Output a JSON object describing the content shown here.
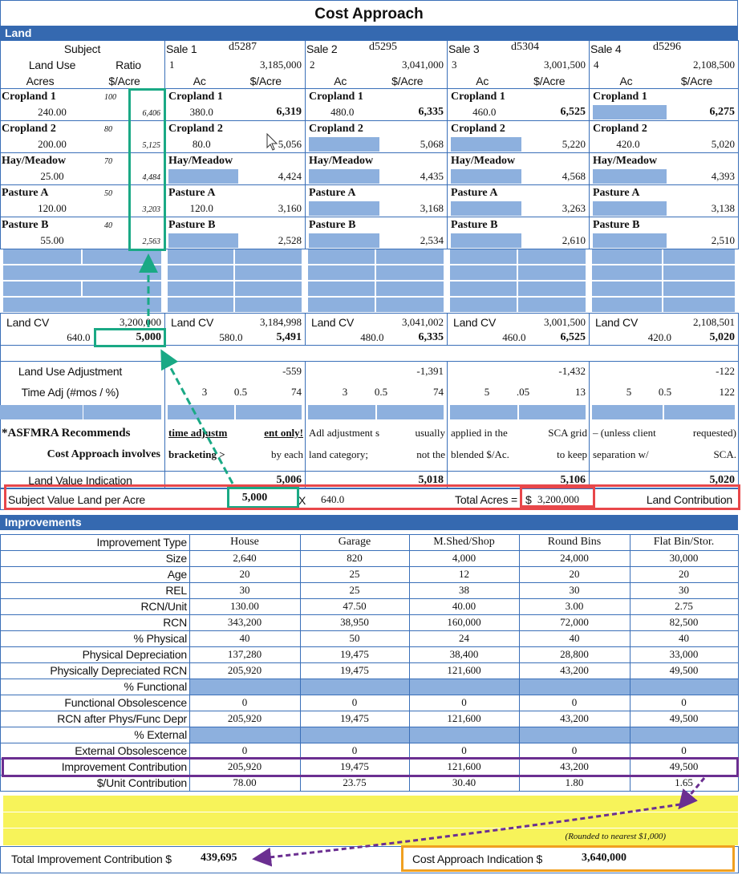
{
  "title": "Cost Approach",
  "land": {
    "section_label": "Land",
    "subject": {
      "label": "Subject",
      "land_use_label": "Land Use",
      "ratio_label": "Ratio",
      "acres_label": "Acres",
      "per_acre_label": "$/Acre",
      "rows": [
        {
          "name": "Cropland 1",
          "ratio": "100",
          "acres": "240.00",
          "per_acre": "6,406"
        },
        {
          "name": "Cropland 2",
          "ratio": "80",
          "acres": "200.00",
          "per_acre": "5,125"
        },
        {
          "name": "Hay/Meadow",
          "ratio": "70",
          "acres": "25.00",
          "per_acre": "4,484"
        },
        {
          "name": "Pasture A",
          "ratio": "50",
          "acres": "120.00",
          "per_acre": "3,203"
        },
        {
          "name": "Pasture B",
          "ratio": "40",
          "acres": "55.00",
          "per_acre": "2,563"
        }
      ],
      "cv_label": "Land CV",
      "cv_total": "3,200,000",
      "cv_acres": "640.0",
      "cv_per_acre": "5,000",
      "land_use_adj_label": "Land Use Adjustment",
      "time_adj_label": "Time Adj (#mos / %)",
      "note1": "*ASFMRA Recommends",
      "note2": "Cost Approach involves",
      "indication_label": "Land Value Indication"
    },
    "ac_label": "Ac",
    "sales": [
      {
        "label": "Sale 1",
        "id": "d5287",
        "num": "1",
        "price": "3,185,000",
        "rows": [
          {
            "name": "Cropland 1",
            "acres": "380.0",
            "per_acre": "6,319"
          },
          {
            "name": "Cropland 2",
            "acres": "80.0",
            "per_acre": "5,056"
          },
          {
            "name": "Hay/Meadow",
            "acres": null,
            "per_acre": "4,424"
          },
          {
            "name": "Pasture A",
            "acres": "120.0",
            "per_acre": "3,160"
          },
          {
            "name": "Pasture B",
            "acres": null,
            "per_acre": "2,528"
          }
        ],
        "cv_total": "3,184,998",
        "cv_acres": "580.0",
        "cv_per_acre": "5,491",
        "land_use_adj": "-559",
        "time_mos": "3",
        "time_pct": "0.5",
        "time_adj": "74",
        "note1a": "time adjustm",
        "note1b": "ent only!",
        "note2a": "bracketing  >",
        "note2b": "by each",
        "indication": "5,006"
      },
      {
        "label": "Sale 2",
        "id": "d5295",
        "num": "2",
        "price": "3,041,000",
        "rows": [
          {
            "name": "Cropland 1",
            "acres": "480.0",
            "per_acre": "6,335"
          },
          {
            "name": "Cropland 2",
            "acres": null,
            "per_acre": "5,068"
          },
          {
            "name": "Hay/Meadow",
            "acres": null,
            "per_acre": "4,435"
          },
          {
            "name": "Pasture A",
            "acres": null,
            "per_acre": "3,168"
          },
          {
            "name": "Pasture B",
            "acres": null,
            "per_acre": "2,534"
          }
        ],
        "cv_total": "3,041,002",
        "cv_acres": "480.0",
        "cv_per_acre": "6,335",
        "land_use_adj": "-1,391",
        "time_mos": "3",
        "time_pct": "0.5",
        "time_adj": "74",
        "note1a": "Adl adjustment s",
        "note1b": "usually",
        "note2a": "land category;",
        "note2b": "not the",
        "indication": "5,018"
      },
      {
        "label": "Sale 3",
        "id": "d5304",
        "num": "3",
        "price": "3,001,500",
        "rows": [
          {
            "name": "Cropland 1",
            "acres": "460.0",
            "per_acre": "6,525"
          },
          {
            "name": "Cropland 2",
            "acres": null,
            "per_acre": "5,220"
          },
          {
            "name": "Hay/Meadow",
            "acres": null,
            "per_acre": "4,568"
          },
          {
            "name": "Pasture A",
            "acres": null,
            "per_acre": "3,263"
          },
          {
            "name": "Pasture B",
            "acres": null,
            "per_acre": "2,610"
          }
        ],
        "cv_total": "3,001,500",
        "cv_acres": "460.0",
        "cv_per_acre": "6,525",
        "land_use_adj": "-1,432",
        "time_mos": "5",
        "time_pct": ".05",
        "time_adj": "13",
        "note1a": "applied in the",
        "note1b": "SCA grid",
        "note2a": "blended $/Ac.",
        "note2b": "to keep",
        "indication": "5,106"
      },
      {
        "label": "Sale 4",
        "id": "d5296",
        "num": "4",
        "price": "2,108,500",
        "rows": [
          {
            "name": "Cropland 1",
            "acres": null,
            "per_acre": "6,275"
          },
          {
            "name": "Cropland 2",
            "acres": "420.0",
            "per_acre": "5,020"
          },
          {
            "name": "Hay/Meadow",
            "acres": null,
            "per_acre": "4,393"
          },
          {
            "name": "Pasture A",
            "acres": null,
            "per_acre": "3,138"
          },
          {
            "name": "Pasture B",
            "acres": null,
            "per_acre": "2,510"
          }
        ],
        "cv_total": "2,108,501",
        "cv_acres": "420.0",
        "cv_per_acre": "5,020",
        "land_use_adj": "-122",
        "time_mos": "5",
        "time_pct": "0.5",
        "time_adj": "122",
        "note1a": "– (unless client",
        "note1b": "requested)",
        "note2a": "separation w/",
        "note2b": "SCA.",
        "indication": "5,020"
      }
    ],
    "summary": {
      "label": "Subject Value Land per Acre",
      "value": "5,000",
      "times": "X",
      "acres": "640.0",
      "total_acres_label": "Total Acres  =",
      "dollar": "$",
      "total": "3,200,000",
      "contribution_label": "Land Contribution"
    }
  },
  "improvements": {
    "section_label": "Improvements",
    "header_label": "Improvement Type",
    "types": [
      "House",
      "Garage",
      "M.Shed/Shop",
      "Round Bins",
      "Flat Bin/Stor."
    ],
    "rows": [
      {
        "label": "Size",
        "values": [
          "2,640",
          "820",
          "4,000",
          "24,000",
          "30,000"
        ]
      },
      {
        "label": "Age",
        "values": [
          "20",
          "25",
          "12",
          "20",
          "20"
        ]
      },
      {
        "label": "REL",
        "values": [
          "30",
          "25",
          "38",
          "30",
          "30"
        ]
      },
      {
        "label": "RCN/Unit",
        "values": [
          "130.00",
          "47.50",
          "40.00",
          "3.00",
          "2.75"
        ]
      },
      {
        "label": "RCN",
        "values": [
          "343,200",
          "38,950",
          "160,000",
          "72,000",
          "82,500"
        ]
      },
      {
        "label": "% Physical",
        "values": [
          "40",
          "50",
          "24",
          "40",
          "40"
        ]
      },
      {
        "label": "Physical Depreciation",
        "values": [
          "137,280",
          "19,475",
          "38,400",
          "28,800",
          "33,000"
        ]
      },
      {
        "label": "Physically Depreciated RCN",
        "values": [
          "205,920",
          "19,475",
          "121,600",
          "43,200",
          "49,500"
        ]
      },
      {
        "label": "% Functional",
        "values": null
      },
      {
        "label": "Functional Obsolescence",
        "values": [
          "0",
          "0",
          "0",
          "0",
          "0"
        ]
      },
      {
        "label": "RCN after Phys/Func Depr",
        "values": [
          "205,920",
          "19,475",
          "121,600",
          "43,200",
          "49,500"
        ]
      },
      {
        "label": "% External",
        "values": null
      },
      {
        "label": "External Obsolescence",
        "values": [
          "0",
          "0",
          "0",
          "0",
          "0"
        ]
      },
      {
        "label": "Improvement Contribution",
        "values": [
          "205,920",
          "19,475",
          "121,600",
          "43,200",
          "49,500"
        ]
      },
      {
        "label": "$/Unit Contribution",
        "values": [
          "78.00",
          "23.75",
          "30.40",
          "1.80",
          "1.65"
        ]
      }
    ],
    "rounded_note": "(Rounded to nearest $1,000)",
    "total_label": "Total Improvement Contribution $",
    "total_value": "439,695",
    "indication_label": "Cost Approach Indication $",
    "indication_value": "3,640,000"
  },
  "colors": {
    "header": "#3569b0",
    "grid": "#3a6fb8",
    "input_fill": "#8db0de",
    "yellow": "#f7f35a",
    "green": "#1aa985",
    "red": "#e8474a",
    "purple": "#6b2f91",
    "orange": "#f0a020"
  }
}
